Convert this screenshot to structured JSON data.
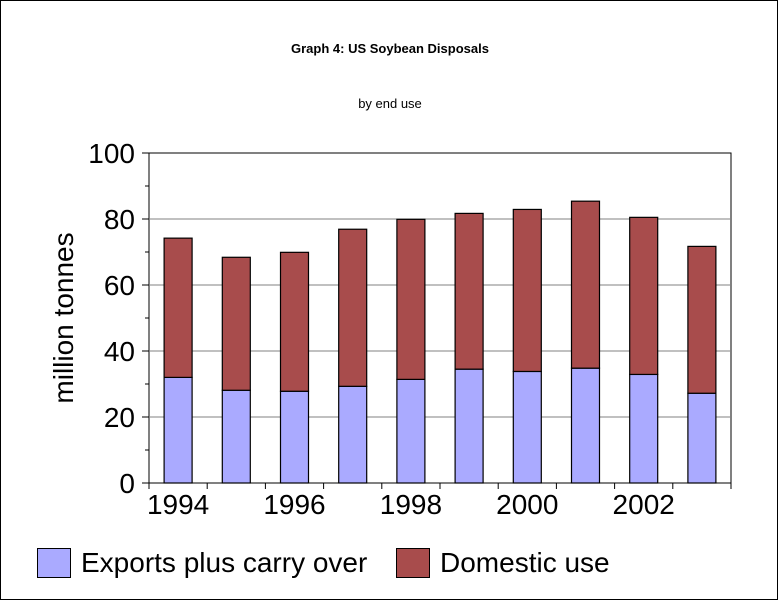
{
  "chart_data": {
    "type": "bar",
    "stacked": true,
    "title": "Graph 4: US Soybean Disposals",
    "subtitle": "by end use",
    "xlabel": "",
    "ylabel": "million tonnes",
    "ylim": [
      0,
      100
    ],
    "yticks": [
      "0",
      "20",
      "40",
      "60",
      "80",
      "100"
    ],
    "categories": [
      "1994",
      "1995",
      "1996",
      "1997",
      "1998",
      "1999",
      "2000",
      "2001",
      "2002",
      "2003"
    ],
    "xtick_labels": [
      "1994",
      "",
      "1996",
      "",
      "1998",
      "",
      "2000",
      "",
      "2002",
      ""
    ],
    "grid": true,
    "legend": "bottom",
    "series": [
      {
        "name": "Exports plus carry over",
        "color": "#aaaaff",
        "values": [
          32.0,
          28.1,
          27.8,
          29.3,
          31.4,
          34.5,
          33.8,
          34.8,
          32.9,
          27.2
        ]
      },
      {
        "name": "Domestic use",
        "color": "#a84c4c",
        "values": [
          42.2,
          40.3,
          42.1,
          47.6,
          48.5,
          47.2,
          49.1,
          50.6,
          47.6,
          44.5
        ]
      }
    ]
  }
}
